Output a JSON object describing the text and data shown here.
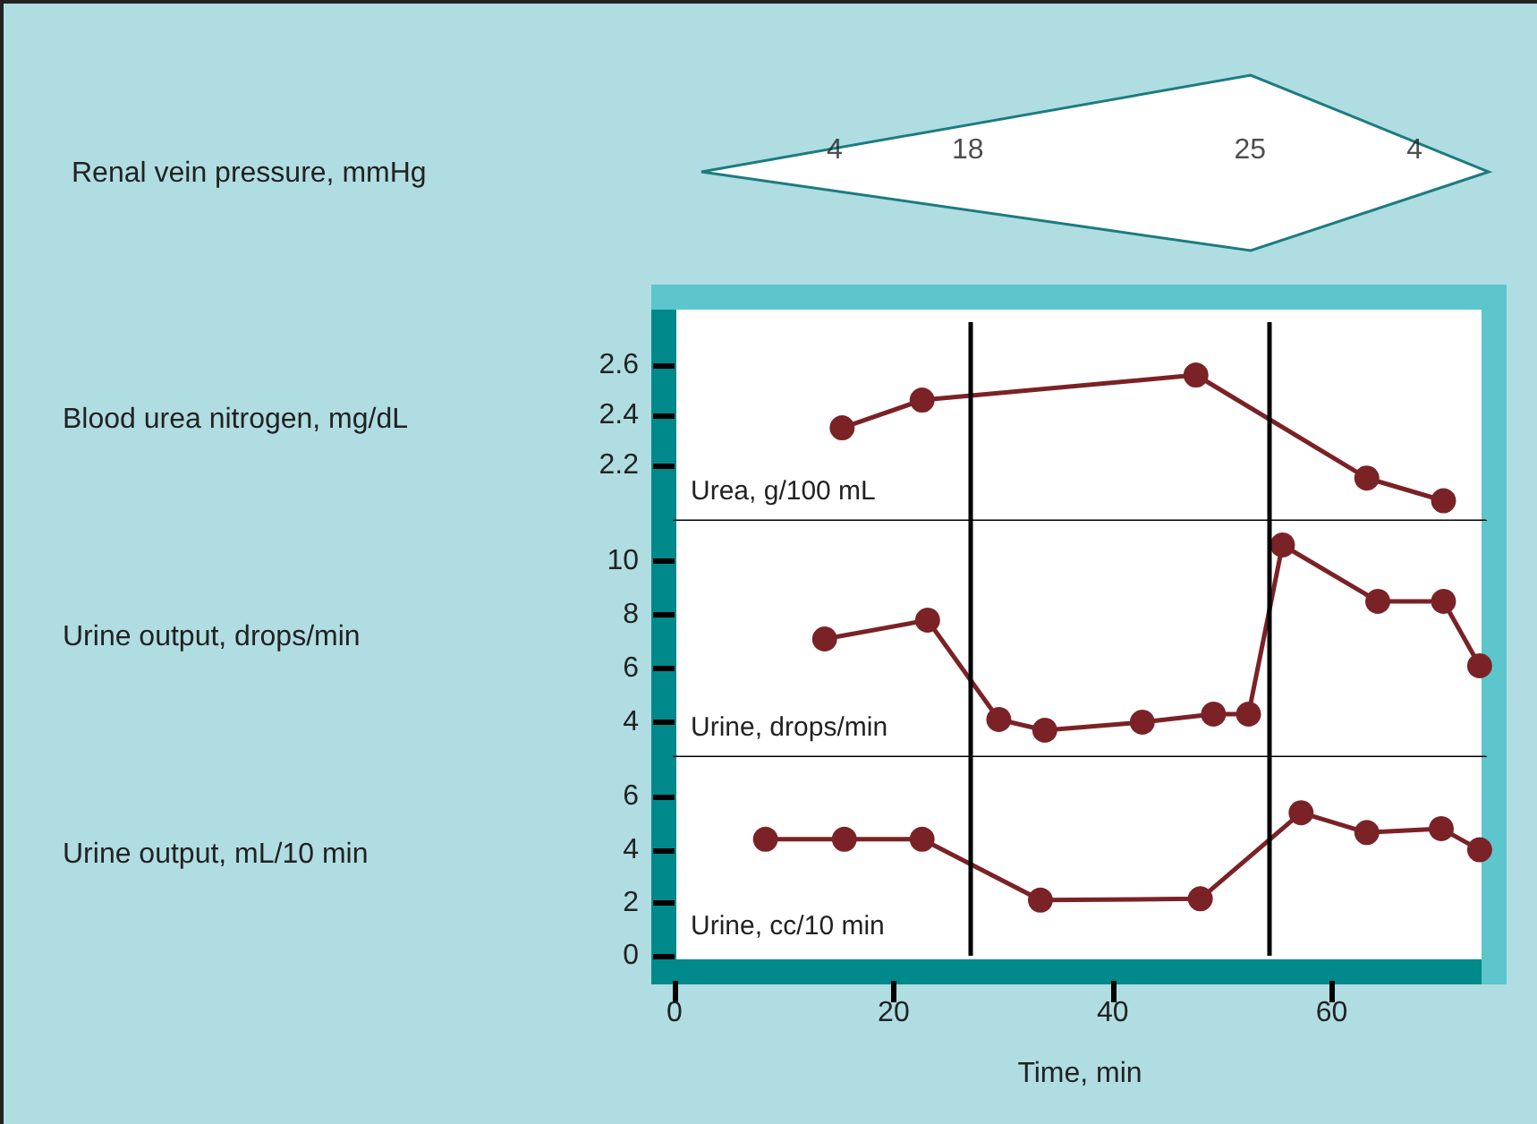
{
  "chart_data": [
    {
      "type": "other",
      "title": "Renal vein pressure, mmHg",
      "values": [
        4,
        18,
        25,
        4
      ],
      "data_labels": true
    },
    {
      "type": "line",
      "ylabel": "Blood urea nitrogen, mg/dL",
      "annotations": [
        "Urea, g/100 mL"
      ],
      "xlim": [
        0,
        74
      ],
      "ylim": [
        1.98,
        2.77
      ],
      "yticks": [
        2.2,
        2.4,
        2.6
      ],
      "tick_labels": "y",
      "marker": "circle",
      "line_style": "solid",
      "series": [
        {
          "color": "#7b2226",
          "x": [
            15.3,
            22.6,
            47.6,
            63.2,
            70.2
          ],
          "values": [
            2.35,
            2.46,
            2.56,
            2.15,
            2.06
          ]
        }
      ],
      "ref_lines": [
        {
          "axis": "x",
          "value": 27,
          "color": "#000000"
        },
        {
          "axis": "x",
          "value": 54.2,
          "color": "#000000"
        }
      ]
    },
    {
      "type": "line",
      "ylabel": "Urine output, drops/min",
      "annotations": [
        "Urine, drops/min"
      ],
      "xlim": [
        0,
        74
      ],
      "ylim": [
        2.7,
        11.5
      ],
      "yticks": [
        4,
        6,
        8,
        10
      ],
      "tick_labels": "y",
      "marker": "circle",
      "line_style": "solid",
      "series": [
        {
          "color": "#7b2226",
          "x": [
            13.7,
            23.1,
            29.6,
            33.8,
            42.7,
            49.2,
            52.4,
            55.5,
            64.2,
            70.2,
            73.5
          ],
          "values": [
            7.1,
            7.8,
            4.1,
            3.7,
            4.0,
            4.3,
            4.3,
            10.6,
            8.5,
            8.5,
            6.1
          ]
        }
      ],
      "ref_lines": [
        {
          "axis": "x",
          "value": 27,
          "color": "#000000"
        },
        {
          "axis": "x",
          "value": 54.2,
          "color": "#000000"
        }
      ]
    },
    {
      "type": "line",
      "ylabel": "Urine output, mL/10 min",
      "xlabel": "Time, min",
      "annotations": [
        "Urine, cc/10 min"
      ],
      "xlim": [
        0,
        74
      ],
      "xticks": [
        0,
        20,
        40,
        60
      ],
      "ylim": [
        0,
        7.5
      ],
      "yticks": [
        0,
        2,
        4,
        6
      ],
      "marker": "circle",
      "line_style": "solid",
      "series": [
        {
          "color": "#7b2226",
          "x": [
            8.3,
            15.5,
            22.6,
            33.4,
            48,
            57.2,
            63.2,
            70,
            73.5
          ],
          "values": [
            4.4,
            4.4,
            4.4,
            2.1,
            2.15,
            5.4,
            4.65,
            4.8,
            4.0
          ]
        }
      ],
      "ref_lines": [
        {
          "axis": "x",
          "value": 27,
          "color": "#000000"
        },
        {
          "axis": "x",
          "value": 54.2,
          "color": "#000000"
        }
      ]
    }
  ]
}
